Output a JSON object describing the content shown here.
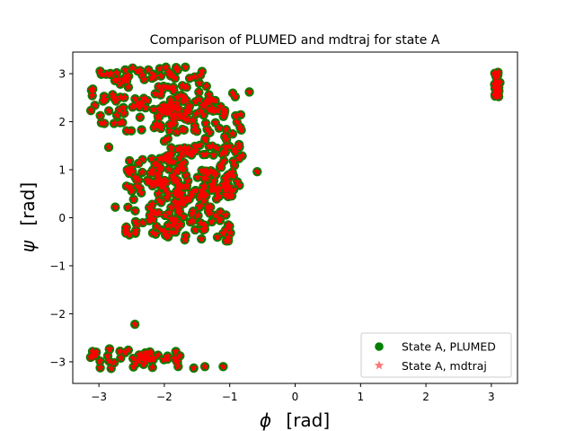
{
  "chart_data": {
    "type": "scatter",
    "title": "Comparison of PLUMED and mdtraj for state A",
    "xlabel_symbol": "ϕ",
    "xlabel_unit": "[rad]",
    "ylabel_symbol": "ψ",
    "ylabel_unit": "[rad]",
    "xlim": [
      -3.4,
      3.4
    ],
    "ylim": [
      -3.45,
      3.45
    ],
    "xticks": [
      -3,
      -2,
      -1,
      0,
      1,
      2,
      3
    ],
    "yticks": [
      -3,
      -2,
      -1,
      0,
      1,
      2,
      3
    ],
    "xtick_labels": [
      "−3",
      "−2",
      "−1",
      "0",
      "1",
      "2",
      "3"
    ],
    "ytick_labels": [
      "−3",
      "−2",
      "−1",
      "0",
      "1",
      "2",
      "3"
    ],
    "grid": false,
    "legend_position": "lower-right",
    "series": [
      {
        "name": "State A, PLUMED",
        "marker": "circle",
        "color": "#008000",
        "regions": [
          {
            "phi": [
              -3.14,
              -1.3
            ],
            "psi": [
              1.8,
              3.14
            ]
          },
          {
            "phi": [
              -2.2,
              -0.8
            ],
            "psi": [
              0.4,
              2.6
            ]
          },
          {
            "phi": [
              -1.9,
              -0.95
            ],
            "psi": [
              -0.5,
              1.0
            ]
          },
          {
            "phi": [
              -2.6,
              -1.7
            ],
            "psi": [
              -0.4,
              1.4
            ]
          },
          {
            "phi": [
              -3.14,
              -1.7
            ],
            "psi": [
              -3.14,
              -2.72
            ]
          },
          {
            "phi": [
              3.05,
              3.14
            ],
            "psi": [
              2.48,
              3.05
            ]
          }
        ],
        "outliers": [
          {
            "phi": -2.45,
            "psi": -2.22
          },
          {
            "phi": -2.75,
            "psi": 0.22
          },
          {
            "phi": -0.58,
            "psi": 0.96
          },
          {
            "phi": -0.7,
            "psi": 2.62
          },
          {
            "phi": -2.85,
            "psi": 1.47
          },
          {
            "phi": -1.1,
            "psi": -3.1
          },
          {
            "phi": -1.38,
            "psi": -3.1
          },
          {
            "phi": -1.55,
            "psi": -3.13
          }
        ]
      },
      {
        "name": "State A, mdtraj",
        "marker": "star",
        "color": "#ff0000"
      }
    ]
  }
}
